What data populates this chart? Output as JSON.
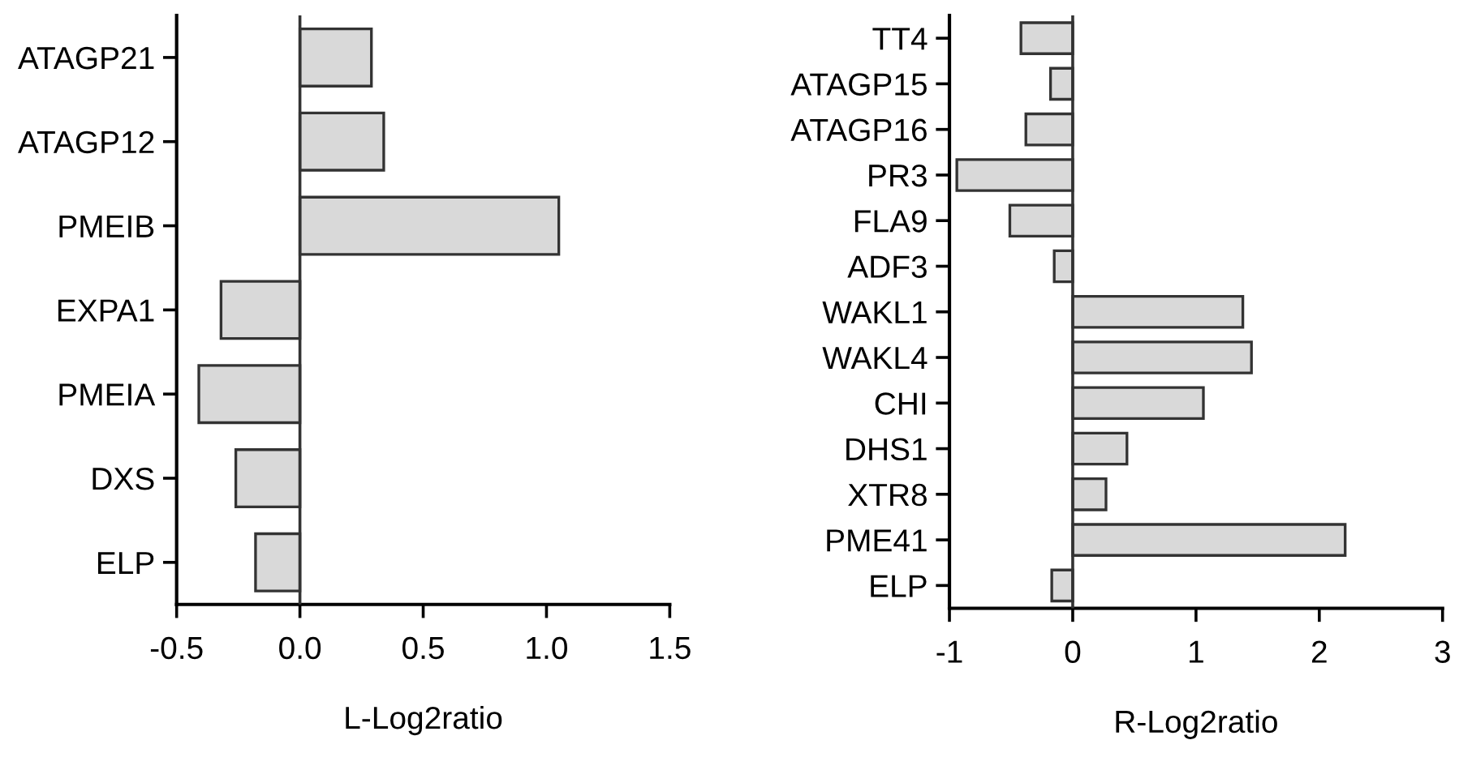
{
  "chart_data": [
    {
      "type": "bar",
      "orientation": "horizontal",
      "xlabel": "L-Log2ratio",
      "categories": [
        "ATAGP21",
        "ATAGP12",
        "PMEIB",
        "EXPA1",
        "PMEIA",
        "DXS",
        "ELP"
      ],
      "values": [
        0.29,
        0.34,
        1.05,
        -0.32,
        -0.41,
        -0.26,
        -0.18
      ],
      "color": "#d9d9d9",
      "xlim": [
        -0.5,
        1.5
      ],
      "xticks": [
        {
          "value": -0.5,
          "label": "-0.5"
        },
        {
          "value": 0,
          "label": "0.0"
        },
        {
          "value": 0.5,
          "label": "0.5"
        },
        {
          "value": 1,
          "label": "1.0"
        },
        {
          "value": 1.5,
          "label": "1.5"
        }
      ],
      "ref_lines": [
        {
          "axis": "x",
          "value": 0,
          "color": "#333333"
        }
      ],
      "grid": false,
      "legend": false
    },
    {
      "type": "bar",
      "orientation": "horizontal",
      "xlabel": "R-Log2ratio",
      "categories": [
        "TT4",
        "ATAGP15",
        "ATAGP16",
        "PR3",
        "FLA9",
        "ADF3",
        "WAKL1",
        "WAKL4",
        "CHI",
        "DHS1",
        "XTR8",
        "PME41",
        "ELP"
      ],
      "values": [
        -0.42,
        -0.18,
        -0.38,
        -0.94,
        -0.51,
        -0.15,
        1.38,
        1.45,
        1.06,
        0.44,
        0.27,
        2.21,
        -0.17
      ],
      "color": "#d9d9d9",
      "xlim": [
        -1,
        3
      ],
      "xticks": [
        {
          "value": -1,
          "label": "-1"
        },
        0,
        1,
        2,
        3
      ],
      "ref_lines": [
        {
          "axis": "x",
          "value": 0,
          "color": "#333333"
        }
      ],
      "grid": false,
      "legend": false
    }
  ]
}
